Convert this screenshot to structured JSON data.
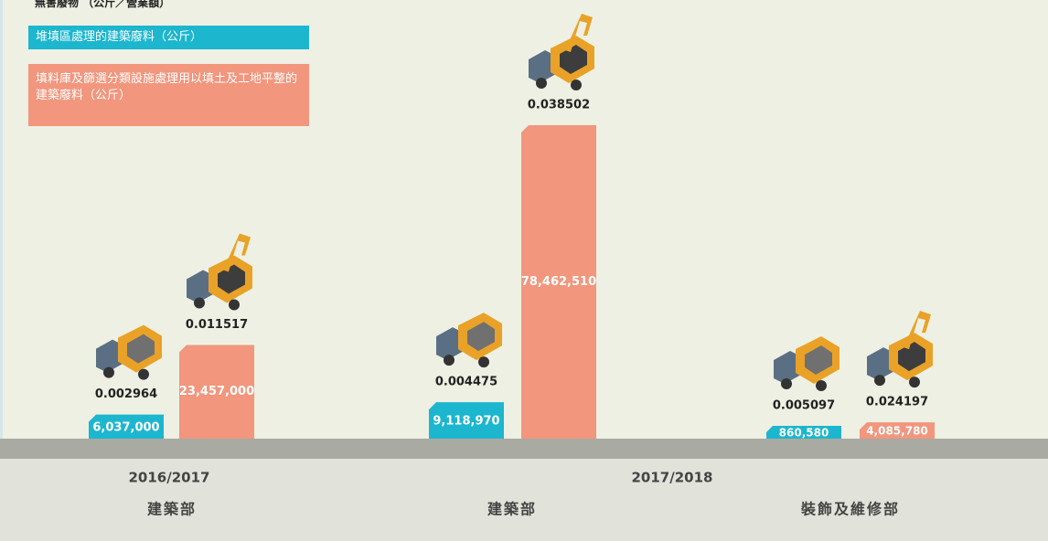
{
  "chart_data": {
    "type": "bar",
    "title": "無害廢物 （公斤／營業額）",
    "periods": [
      "2016/2017",
      "2017/2018"
    ],
    "categories": [
      "建築部",
      "建築部",
      "裝飾及維修部"
    ],
    "series": [
      {
        "name": "堆填區處理的建築廢料（公斤）",
        "color": "#1cb6cf",
        "values": [
          6037000,
          9118970,
          860580
        ],
        "value_labels": [
          "6,037,000",
          "9,118,970",
          "860,580"
        ],
        "ratios": [
          0.002964,
          0.004475,
          0.005097
        ]
      },
      {
        "name": "填料庫及篩選分類設施處理用以填土及工地平整的建築廢料（公斤）",
        "color": "#f2967d",
        "values": [
          23457000,
          78462510,
          4085780
        ],
        "value_labels": [
          "23,457,000",
          "78,462,510",
          "4,085,780"
        ],
        "ratios": [
          0.011517,
          0.038502,
          0.024197
        ]
      }
    ]
  }
}
